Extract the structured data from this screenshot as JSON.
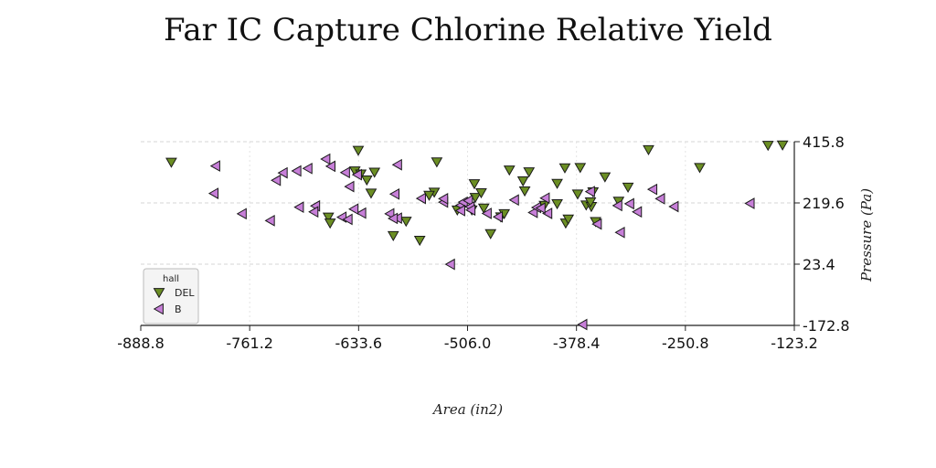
{
  "chart_data": {
    "type": "scatter",
    "title": "Far IC Capture Chlorine Relative Yield",
    "xlabel": "Area (in2)",
    "ylabel": "Pressure (Pa)",
    "xlim": [
      -888.8,
      -123.2
    ],
    "ylim": [
      -172.8,
      415.8
    ],
    "xticks": [
      "-888.8",
      "-761.2",
      "-633.6",
      "-506.0",
      "-378.4",
      "-250.8",
      "-123.2"
    ],
    "yticks": [
      "415.8",
      "219.6",
      "23.4",
      "-172.8"
    ],
    "grid": true,
    "legend": {
      "title": "hall",
      "position": "bottom-left"
    },
    "series": [
      {
        "name": "DEL",
        "marker": "triangle-down",
        "color": "#6b8e23",
        "points": [
          [
            -853,
            350
          ],
          [
            -634,
            388
          ],
          [
            -638,
            322
          ],
          [
            -631,
            312
          ],
          [
            -615,
            318
          ],
          [
            -624,
            293
          ],
          [
            -619,
            251
          ],
          [
            -578,
            161
          ],
          [
            -593,
            115
          ],
          [
            -562,
            100
          ],
          [
            -542,
            351
          ],
          [
            -545,
            254
          ],
          [
            -551,
            244
          ],
          [
            -518,
            197
          ],
          [
            -501,
            197
          ],
          [
            -498,
            281
          ],
          [
            -497,
            237
          ],
          [
            -490,
            252
          ],
          [
            -487,
            203
          ],
          [
            -479,
            121
          ],
          [
            -467,
            175
          ],
          [
            -463,
            185
          ],
          [
            -457,
            325
          ],
          [
            -441,
            290
          ],
          [
            -439,
            258
          ],
          [
            -434,
            319
          ],
          [
            -416,
            212
          ],
          [
            -401,
            282
          ],
          [
            -401,
            217
          ],
          [
            -392,
            332
          ],
          [
            -377,
            248
          ],
          [
            -367,
            213
          ],
          [
            -361,
            208
          ],
          [
            -362,
            223
          ],
          [
            -356,
            160
          ],
          [
            -391,
            155
          ],
          [
            -388,
            168
          ],
          [
            -359,
            255
          ],
          [
            -345,
            303
          ],
          [
            -329,
            225
          ],
          [
            -318,
            270
          ],
          [
            -294,
            390
          ],
          [
            -234,
            333
          ],
          [
            -154,
            404
          ],
          [
            -137,
            405
          ],
          [
            -669,
            174
          ],
          [
            -667,
            155
          ],
          [
            -374,
            333
          ]
        ]
      },
      {
        "name": "B",
        "marker": "triangle-left",
        "color": "#c77fd8",
        "points": [
          [
            -803,
            250
          ],
          [
            -801,
            338
          ],
          [
            -770,
            185
          ],
          [
            -737,
            163
          ],
          [
            -722,
            316
          ],
          [
            -730,
            292
          ],
          [
            -706,
            322
          ],
          [
            -703,
            206
          ],
          [
            -684,
            210
          ],
          [
            -686,
            191
          ],
          [
            -693,
            330
          ],
          [
            -672,
            360
          ],
          [
            -666,
            337
          ],
          [
            -649,
            317
          ],
          [
            -635,
            310
          ],
          [
            -644,
            272
          ],
          [
            -630,
            187
          ],
          [
            -653,
            174
          ],
          [
            -646,
            167
          ],
          [
            -639,
            200
          ],
          [
            -588,
            342
          ],
          [
            -591,
            248
          ],
          [
            -597,
            185
          ],
          [
            -588,
            171
          ],
          [
            -593,
            170
          ],
          [
            -560,
            234
          ],
          [
            -534,
            222
          ],
          [
            -514,
            212
          ],
          [
            -511,
            222
          ],
          [
            -505,
            227
          ],
          [
            -503,
            207
          ],
          [
            -483,
            186
          ],
          [
            -470,
            175
          ],
          [
            -451,
            229
          ],
          [
            -429,
            189
          ],
          [
            -425,
            205
          ],
          [
            -415,
            235
          ],
          [
            -412,
            186
          ],
          [
            -420,
            203
          ],
          [
            -362,
            256
          ],
          [
            -330,
            211
          ],
          [
            -316,
            217
          ],
          [
            -289,
            263
          ],
          [
            -280,
            233
          ],
          [
            -264,
            208
          ],
          [
            -175,
            218
          ],
          [
            -371,
            -170
          ],
          [
            -354,
            152
          ],
          [
            -327,
            125
          ],
          [
            -307,
            191
          ],
          [
            -526,
            23
          ],
          [
            -502,
            197
          ],
          [
            -514,
            195
          ],
          [
            -534,
            233
          ]
        ]
      }
    ]
  }
}
